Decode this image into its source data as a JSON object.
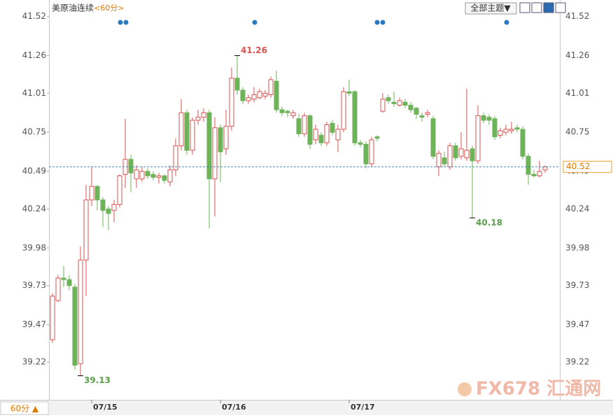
{
  "chart_data": {
    "type": "candlestick",
    "title": "美原油连续",
    "period": "<60分>",
    "theme_button": "全部主题▼",
    "period_button": "60分 ▲",
    "watermark": "FX678 汇通网",
    "up_color": "#d9534f",
    "down_color": "#6db35a",
    "ylim": [
      38.97,
      41.63
    ],
    "yticks": [
      41.52,
      41.26,
      41.01,
      40.75,
      40.49,
      40.24,
      39.98,
      39.73,
      39.47,
      39.22
    ],
    "last_price": 40.52,
    "annotations": [
      {
        "value": 41.26,
        "color": "#d9534f"
      },
      {
        "value": 40.18,
        "color": "#5a9e4a"
      },
      {
        "value": 39.13,
        "color": "#5a9e4a"
      }
    ],
    "categories": [
      null,
      null,
      null,
      null,
      null,
      null,
      null,
      "07/15",
      null,
      null,
      null,
      null,
      null,
      null,
      null,
      null,
      null,
      null,
      null,
      null,
      null,
      null,
      null,
      null,
      null,
      null,
      null,
      null,
      null,
      null,
      "07/16",
      null,
      null,
      null,
      null,
      null,
      null,
      null,
      null,
      null,
      null,
      null,
      null,
      null,
      null,
      null,
      null,
      null,
      null,
      null,
      null,
      null,
      null,
      "07/17",
      null,
      null,
      null,
      null,
      null,
      null,
      null,
      null,
      null,
      null,
      null,
      null,
      null,
      null,
      null,
      null,
      null,
      null,
      null,
      null,
      null,
      null,
      null,
      null,
      null,
      null,
      null,
      null,
      null,
      null,
      null,
      null,
      null,
      null,
      null
    ],
    "open": [
      39.37,
      39.63,
      39.78,
      39.77,
      39.72,
      39.21,
      39.9,
      40.3,
      40.39,
      40.3,
      40.24,
      40.23,
      40.27,
      40.47,
      40.57,
      40.44,
      40.44,
      40.49,
      40.47,
      40.45,
      40.46,
      40.42,
      40.5,
      40.66,
      40.88,
      40.63,
      40.83,
      40.85,
      40.88,
      40.44,
      40.78,
      40.64,
      40.79,
      41.11,
      41.03,
      40.96,
      40.97,
      40.98,
      40.99,
      41.0,
      41.09,
      40.9,
      40.89,
      40.86,
      40.84,
      40.74,
      40.86,
      40.7,
      40.73,
      40.68,
      40.81,
      40.7,
      40.77,
      41.02,
      41.02,
      40.68,
      40.67,
      40.54,
      40.72,
      40.89,
      40.98,
      40.95,
      40.93,
      40.95,
      40.93,
      40.91,
      40.86,
      40.87,
      40.84,
      40.52,
      40.58,
      40.52,
      40.66,
      40.59,
      40.58,
      40.64,
      40.56,
      40.86,
      40.85,
      40.84,
      40.73,
      40.75,
      40.76,
      40.78,
      40.77,
      40.59,
      40.47,
      40.46,
      40.5
    ],
    "high": [
      39.68,
      39.8,
      39.86,
      39.8,
      39.74,
      39.99,
      40.4,
      40.52,
      40.4,
      40.32,
      40.26,
      40.3,
      40.47,
      40.84,
      40.6,
      40.53,
      40.52,
      40.51,
      40.49,
      40.48,
      40.47,
      40.53,
      40.71,
      40.97,
      40.9,
      40.85,
      40.9,
      40.91,
      40.9,
      40.85,
      40.8,
      40.9,
      41.18,
      41.26,
      41.05,
      41.0,
      41.05,
      41.04,
      41.03,
      41.12,
      41.16,
      40.92,
      40.9,
      40.9,
      40.87,
      40.88,
      40.87,
      40.8,
      40.75,
      40.82,
      40.83,
      40.8,
      41.05,
      41.1,
      41.03,
      40.7,
      40.69,
      40.72,
      40.73,
      41.01,
      41.0,
      41.02,
      40.98,
      40.97,
      40.95,
      40.92,
      40.88,
      40.9,
      40.86,
      40.63,
      40.62,
      40.68,
      40.68,
      40.75,
      41.04,
      40.66,
      40.93,
      40.88,
      40.87,
      40.86,
      40.78,
      40.8,
      40.82,
      40.8,
      40.79,
      40.61,
      40.5,
      40.56,
      40.53
    ],
    "low": [
      39.35,
      39.62,
      39.72,
      39.7,
      39.17,
      39.13,
      39.66,
      40.26,
      40.23,
      40.12,
      40.1,
      40.15,
      40.25,
      40.38,
      40.35,
      40.38,
      40.42,
      40.44,
      40.43,
      40.41,
      40.41,
      40.39,
      40.46,
      40.63,
      40.6,
      40.6,
      40.8,
      40.82,
      40.11,
      40.19,
      40.42,
      40.6,
      40.76,
      41.0,
      40.94,
      40.94,
      40.95,
      40.97,
      40.97,
      40.98,
      40.88,
      40.86,
      40.85,
      40.84,
      40.72,
      40.72,
      40.64,
      40.67,
      40.66,
      40.66,
      40.73,
      40.62,
      40.75,
      40.99,
      40.66,
      40.65,
      40.51,
      40.52,
      40.69,
      40.88,
      40.94,
      40.92,
      40.92,
      40.91,
      40.88,
      40.84,
      40.82,
      40.85,
      40.57,
      40.46,
      40.52,
      40.5,
      40.56,
      40.57,
      40.56,
      40.18,
      40.54,
      40.81,
      40.8,
      40.7,
      40.71,
      40.73,
      40.74,
      40.75,
      40.57,
      40.4,
      40.45,
      40.45,
      40.48
    ],
    "close": [
      39.66,
      39.78,
      39.77,
      39.73,
      39.2,
      39.9,
      40.3,
      40.39,
      40.3,
      40.23,
      40.21,
      40.27,
      40.46,
      40.57,
      40.48,
      40.5,
      40.49,
      40.46,
      40.45,
      40.46,
      40.43,
      40.5,
      40.66,
      40.88,
      40.63,
      40.83,
      40.85,
      40.88,
      40.44,
      40.78,
      40.62,
      40.79,
      41.11,
      41.03,
      40.96,
      40.98,
      41.0,
      41.02,
      41.01,
      41.1,
      40.9,
      40.88,
      40.88,
      40.88,
      40.74,
      40.86,
      40.67,
      40.77,
      40.68,
      40.8,
      40.75,
      40.77,
      41.02,
      41.01,
      40.68,
      40.67,
      40.54,
      40.7,
      40.71,
      40.97,
      40.96,
      40.94,
      40.96,
      40.93,
      40.9,
      40.87,
      40.85,
      40.88,
      40.59,
      40.61,
      40.54,
      40.66,
      40.58,
      40.64,
      40.63,
      40.56,
      40.86,
      40.83,
      40.83,
      40.72,
      40.76,
      40.77,
      40.77,
      40.77,
      40.59,
      40.47,
      40.46,
      40.49,
      40.52
    ]
  }
}
